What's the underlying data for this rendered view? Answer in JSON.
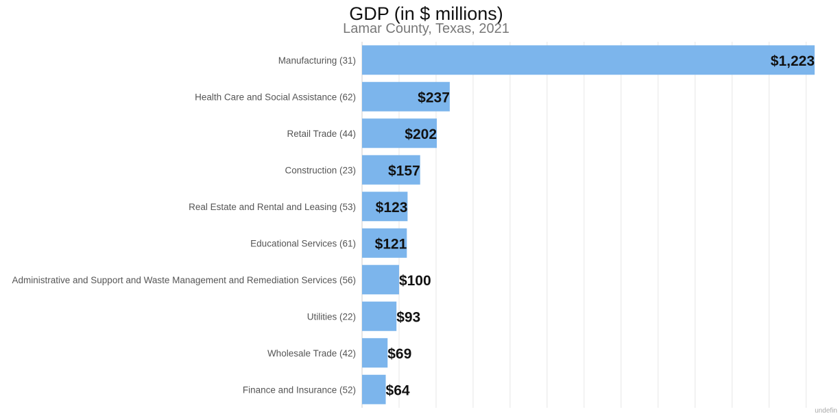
{
  "chart_data": {
    "type": "bar",
    "orientation": "horizontal",
    "title": "GDP (in $ millions)",
    "subtitle": "Lamar County, Texas, 2021",
    "categories": [
      "Manufacturing (31)",
      "Health Care and Social Assistance (62)",
      "Retail Trade (44)",
      "Construction (23)",
      "Real Estate and Rental and Leasing (53)",
      "Educational Services (61)",
      "Administrative and Support and Waste Management and Remediation Services (56)",
      "Utilities (22)",
      "Wholesale Trade (42)",
      "Finance and Insurance (52)"
    ],
    "values": [
      1223,
      237,
      202,
      157,
      123,
      121,
      100,
      93,
      69,
      64
    ],
    "value_labels": [
      "$1,223",
      "$237",
      "$202",
      "$157",
      "$123",
      "$121",
      "$100",
      "$93",
      "$69",
      "$64"
    ],
    "xlim": [
      0,
      1300
    ],
    "grid": true,
    "bar_color": "#7cb5ec"
  },
  "footer": "undefin"
}
